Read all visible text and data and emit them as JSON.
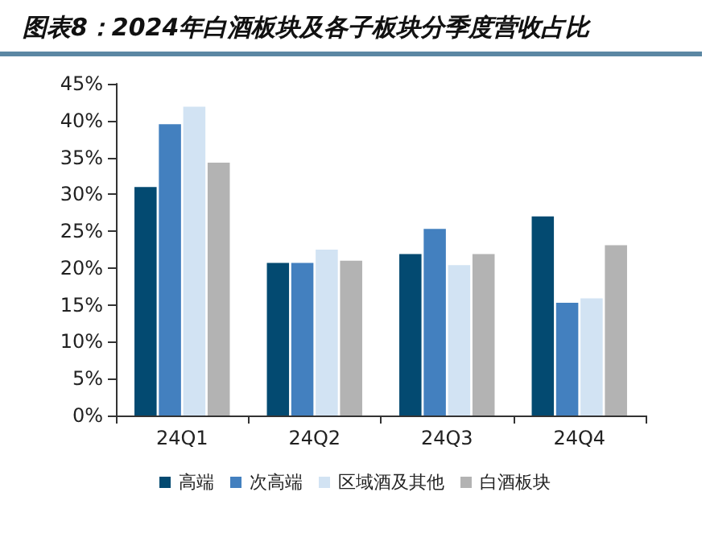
{
  "chart_data": {
    "type": "bar",
    "title": "图表8：2024年白酒板块及各子板块分季度营收占比",
    "categories": [
      "24Q1",
      "24Q2",
      "24Q3",
      "24Q4"
    ],
    "series": [
      {
        "name": "高端",
        "color": "#034a71",
        "values": [
          31.0,
          20.7,
          21.9,
          27.0
        ]
      },
      {
        "name": "次高端",
        "color": "#4380bf",
        "values": [
          39.5,
          20.7,
          25.3,
          15.3
        ]
      },
      {
        "name": "区域酒及其他",
        "color": "#d2e3f3",
        "values": [
          41.9,
          22.5,
          20.4,
          15.9
        ]
      },
      {
        "name": "白酒板块",
        "color": "#b3b3b3",
        "values": [
          34.3,
          21.0,
          21.9,
          23.1
        ]
      }
    ],
    "ylim": [
      0,
      45
    ],
    "yticks": [
      {
        "value": 0,
        "label": "0%"
      },
      {
        "value": 5,
        "label": "5%"
      },
      {
        "value": 10,
        "label": "10%"
      },
      {
        "value": 15,
        "label": "15%"
      },
      {
        "value": 20,
        "label": "20%"
      },
      {
        "value": 25,
        "label": "25%"
      },
      {
        "value": 30,
        "label": "30%"
      },
      {
        "value": 35,
        "label": "35%"
      },
      {
        "value": 40,
        "label": "40%"
      },
      {
        "value": 45,
        "label": "45%"
      }
    ],
    "grid": false,
    "legend": "bottom"
  }
}
